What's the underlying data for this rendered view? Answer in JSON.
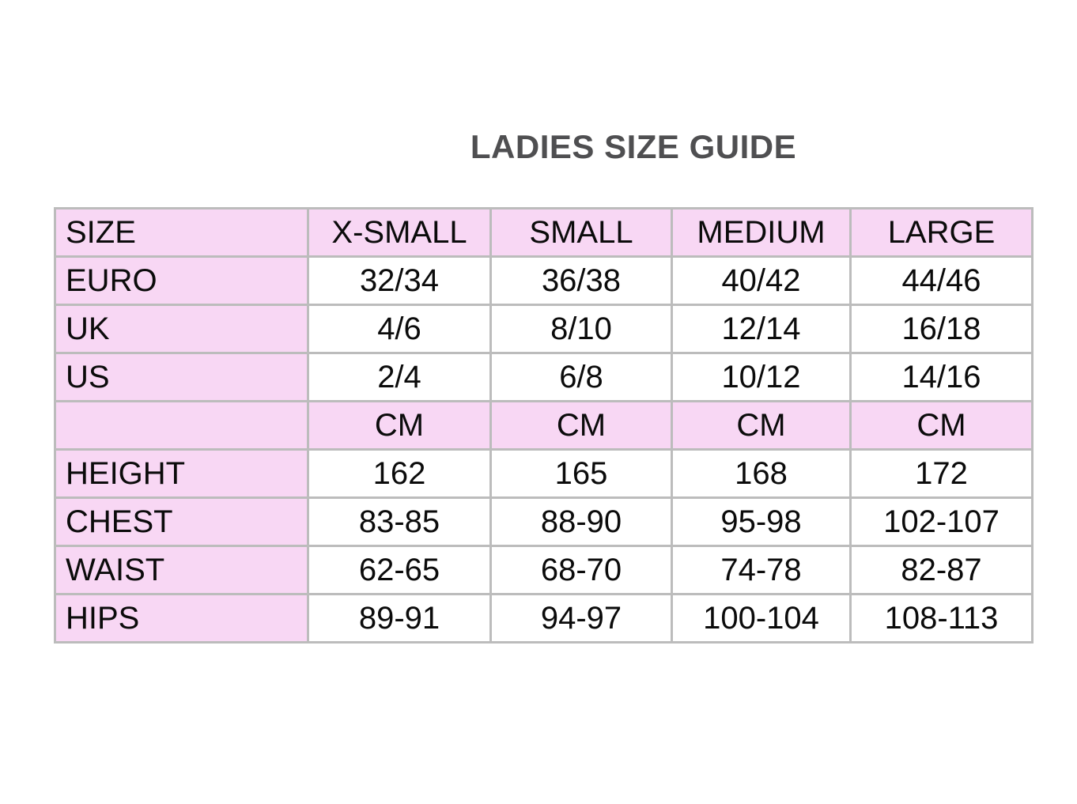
{
  "title": "LADIES SIZE GUIDE",
  "colors": {
    "cell_pink": "#f8d7f4",
    "border_gray": "#bcbcbc",
    "title_gray": "#4f4f51",
    "text_black": "#0b0b0b"
  },
  "table": {
    "header": [
      "SIZE",
      "X-SMALL",
      "SMALL",
      "MEDIUM",
      "LARGE"
    ],
    "rows": [
      [
        "EURO",
        "32/34",
        "36/38",
        "40/42",
        "44/46"
      ],
      [
        "UK",
        "4/6",
        "8/10",
        "12/14",
        "16/18"
      ],
      [
        "US",
        "2/4",
        "6/8",
        "10/12",
        "14/16"
      ],
      [
        "",
        "CM",
        "CM",
        "CM",
        "CM"
      ],
      [
        "HEIGHT",
        "162",
        "165",
        "168",
        "172"
      ],
      [
        "CHEST",
        "83-85",
        "88-90",
        "95-98",
        "102-107"
      ],
      [
        "WAIST",
        "62-65",
        "68-70",
        "74-78",
        "82-87"
      ],
      [
        "HIPS",
        "89-91",
        "94-97",
        "100-104",
        "108-113"
      ]
    ]
  }
}
